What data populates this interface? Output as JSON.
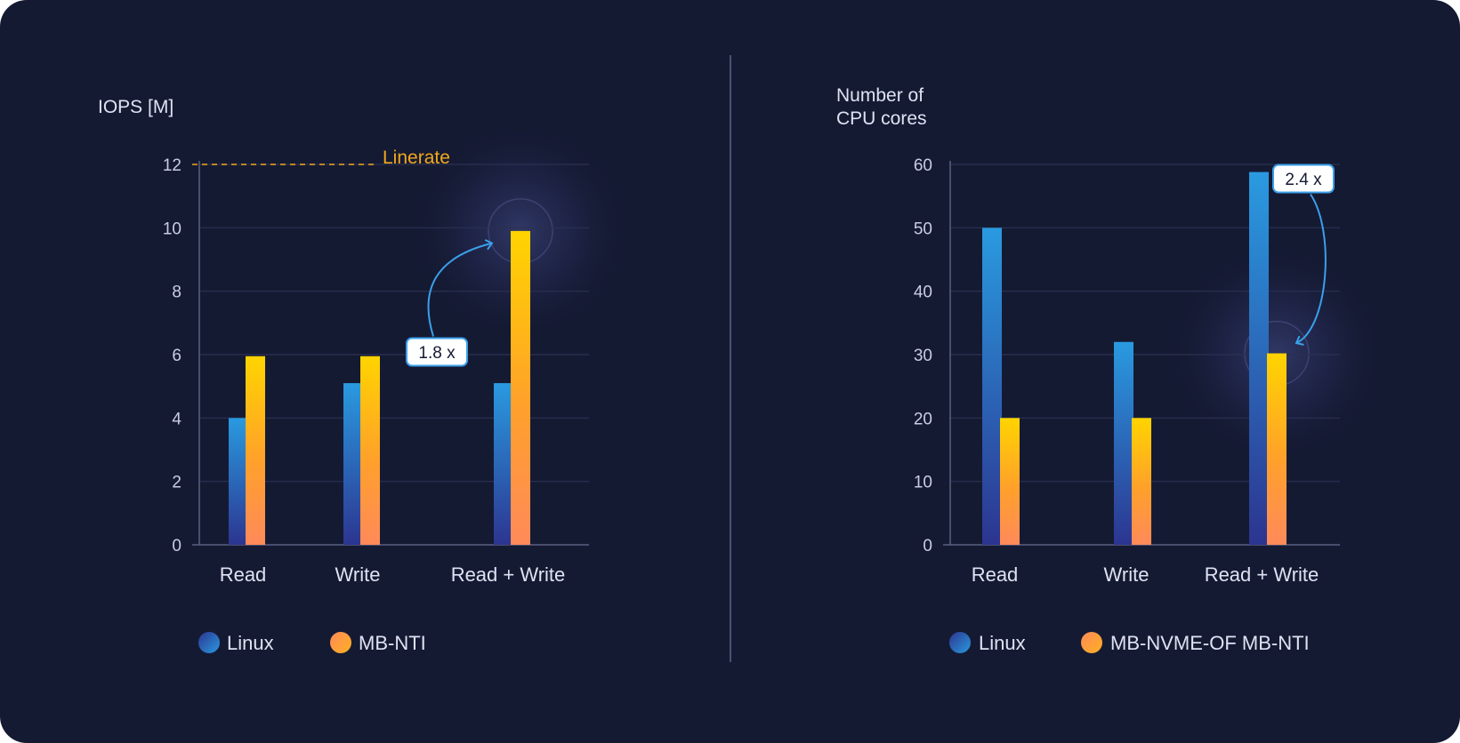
{
  "colors": {
    "background": "#151a33",
    "linux_top": "#2a9ae0",
    "linux_bottom": "#2c3590",
    "mb_top": "#ffd400",
    "mb_bottom": "#ff8a5a",
    "linerate": "#f2a81d",
    "divider": "#4a5070"
  },
  "chart_data": [
    {
      "type": "bar",
      "ylabel": "IOPS [M]",
      "ylim": [
        0,
        12
      ],
      "yticks": [
        "0",
        "2",
        "4",
        "6",
        "8",
        "10",
        "12"
      ],
      "categories": [
        "Read",
        "Write",
        "Read + Write"
      ],
      "series": [
        {
          "name": "Linux",
          "values": [
            4,
            5.1,
            5.1
          ]
        },
        {
          "name": "MB-NTI",
          "values": [
            5.95,
            5.95,
            9.9
          ]
        }
      ],
      "reference_line": {
        "label": "Linerate",
        "value": 12
      },
      "annotation": {
        "label": "1.8 x"
      },
      "grid": true,
      "legend": "bottom-left"
    },
    {
      "type": "bar",
      "ylabel_lines": [
        "Number of",
        "CPU cores"
      ],
      "ylim": [
        0,
        60
      ],
      "yticks": [
        "0",
        "10",
        "20",
        "30",
        "40",
        "50",
        "60"
      ],
      "categories": [
        "Read",
        "Write",
        "Read + Write"
      ],
      "series": [
        {
          "name": "Linux",
          "values": [
            50,
            32,
            58.8
          ]
        },
        {
          "name": "MB-NVME-OF MB-NTI",
          "values": [
            20,
            20,
            30.2
          ]
        }
      ],
      "annotation": {
        "label": "2.4 x"
      },
      "grid": true,
      "legend": "bottom-left"
    }
  ]
}
